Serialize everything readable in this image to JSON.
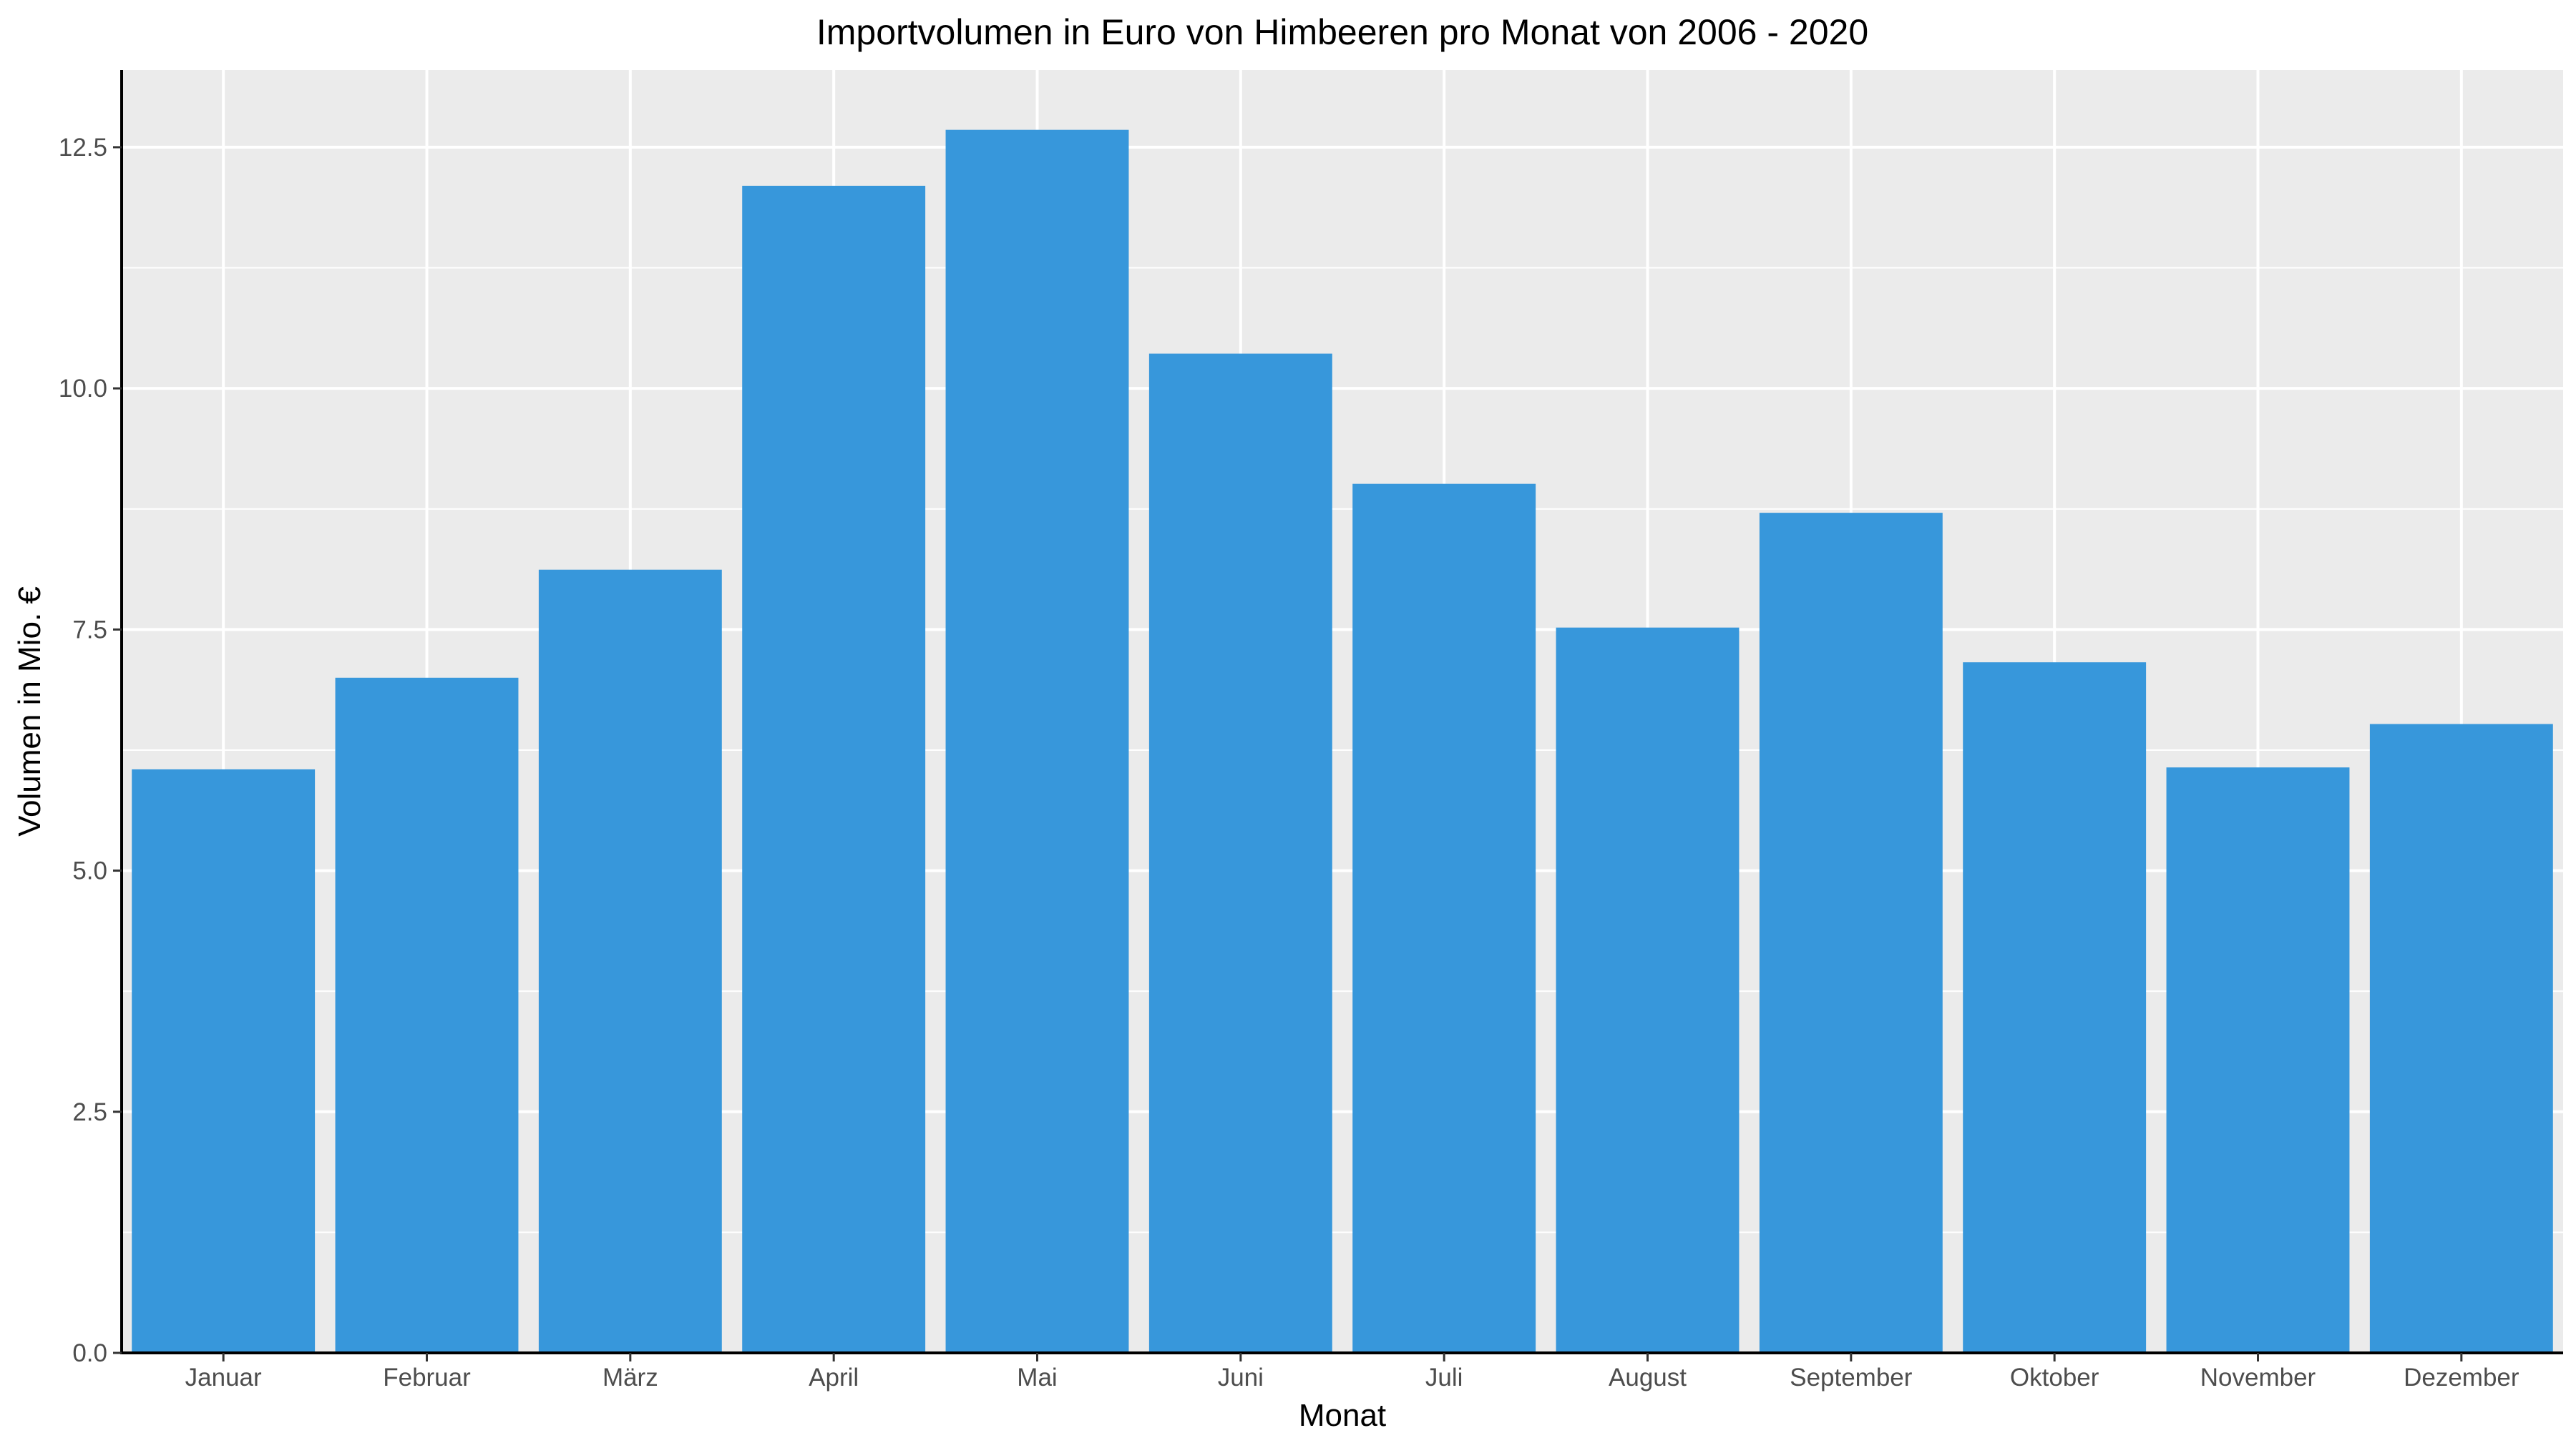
{
  "chart_data": {
    "type": "bar",
    "title": "Importvolumen in Euro von Himbeeren pro Monat von 2006 - 2020",
    "xlabel": "Monat",
    "ylabel": "Volumen in Mio. €",
    "categories": [
      "Januar",
      "Februar",
      "März",
      "April",
      "Mai",
      "Juni",
      "Juli",
      "August",
      "September",
      "Oktober",
      "November",
      "Dezember"
    ],
    "values": [
      6.05,
      7.0,
      8.12,
      12.1,
      12.68,
      10.36,
      9.01,
      7.52,
      8.71,
      7.16,
      6.07,
      6.52
    ],
    "ylim": [
      0,
      13.3
    ],
    "yticks": [
      0,
      2.5,
      5,
      7.5,
      10,
      12.5
    ],
    "ytick_labels": [
      "0.0",
      "2.5",
      "5.0",
      "7.5",
      "10.0",
      "12.5"
    ],
    "grid": true,
    "legend": "none",
    "colors": {
      "bar": "#3797DB",
      "panel_background": "#EBEBEB",
      "grid": "#FFFFFF",
      "axis_line": "#000000"
    }
  }
}
